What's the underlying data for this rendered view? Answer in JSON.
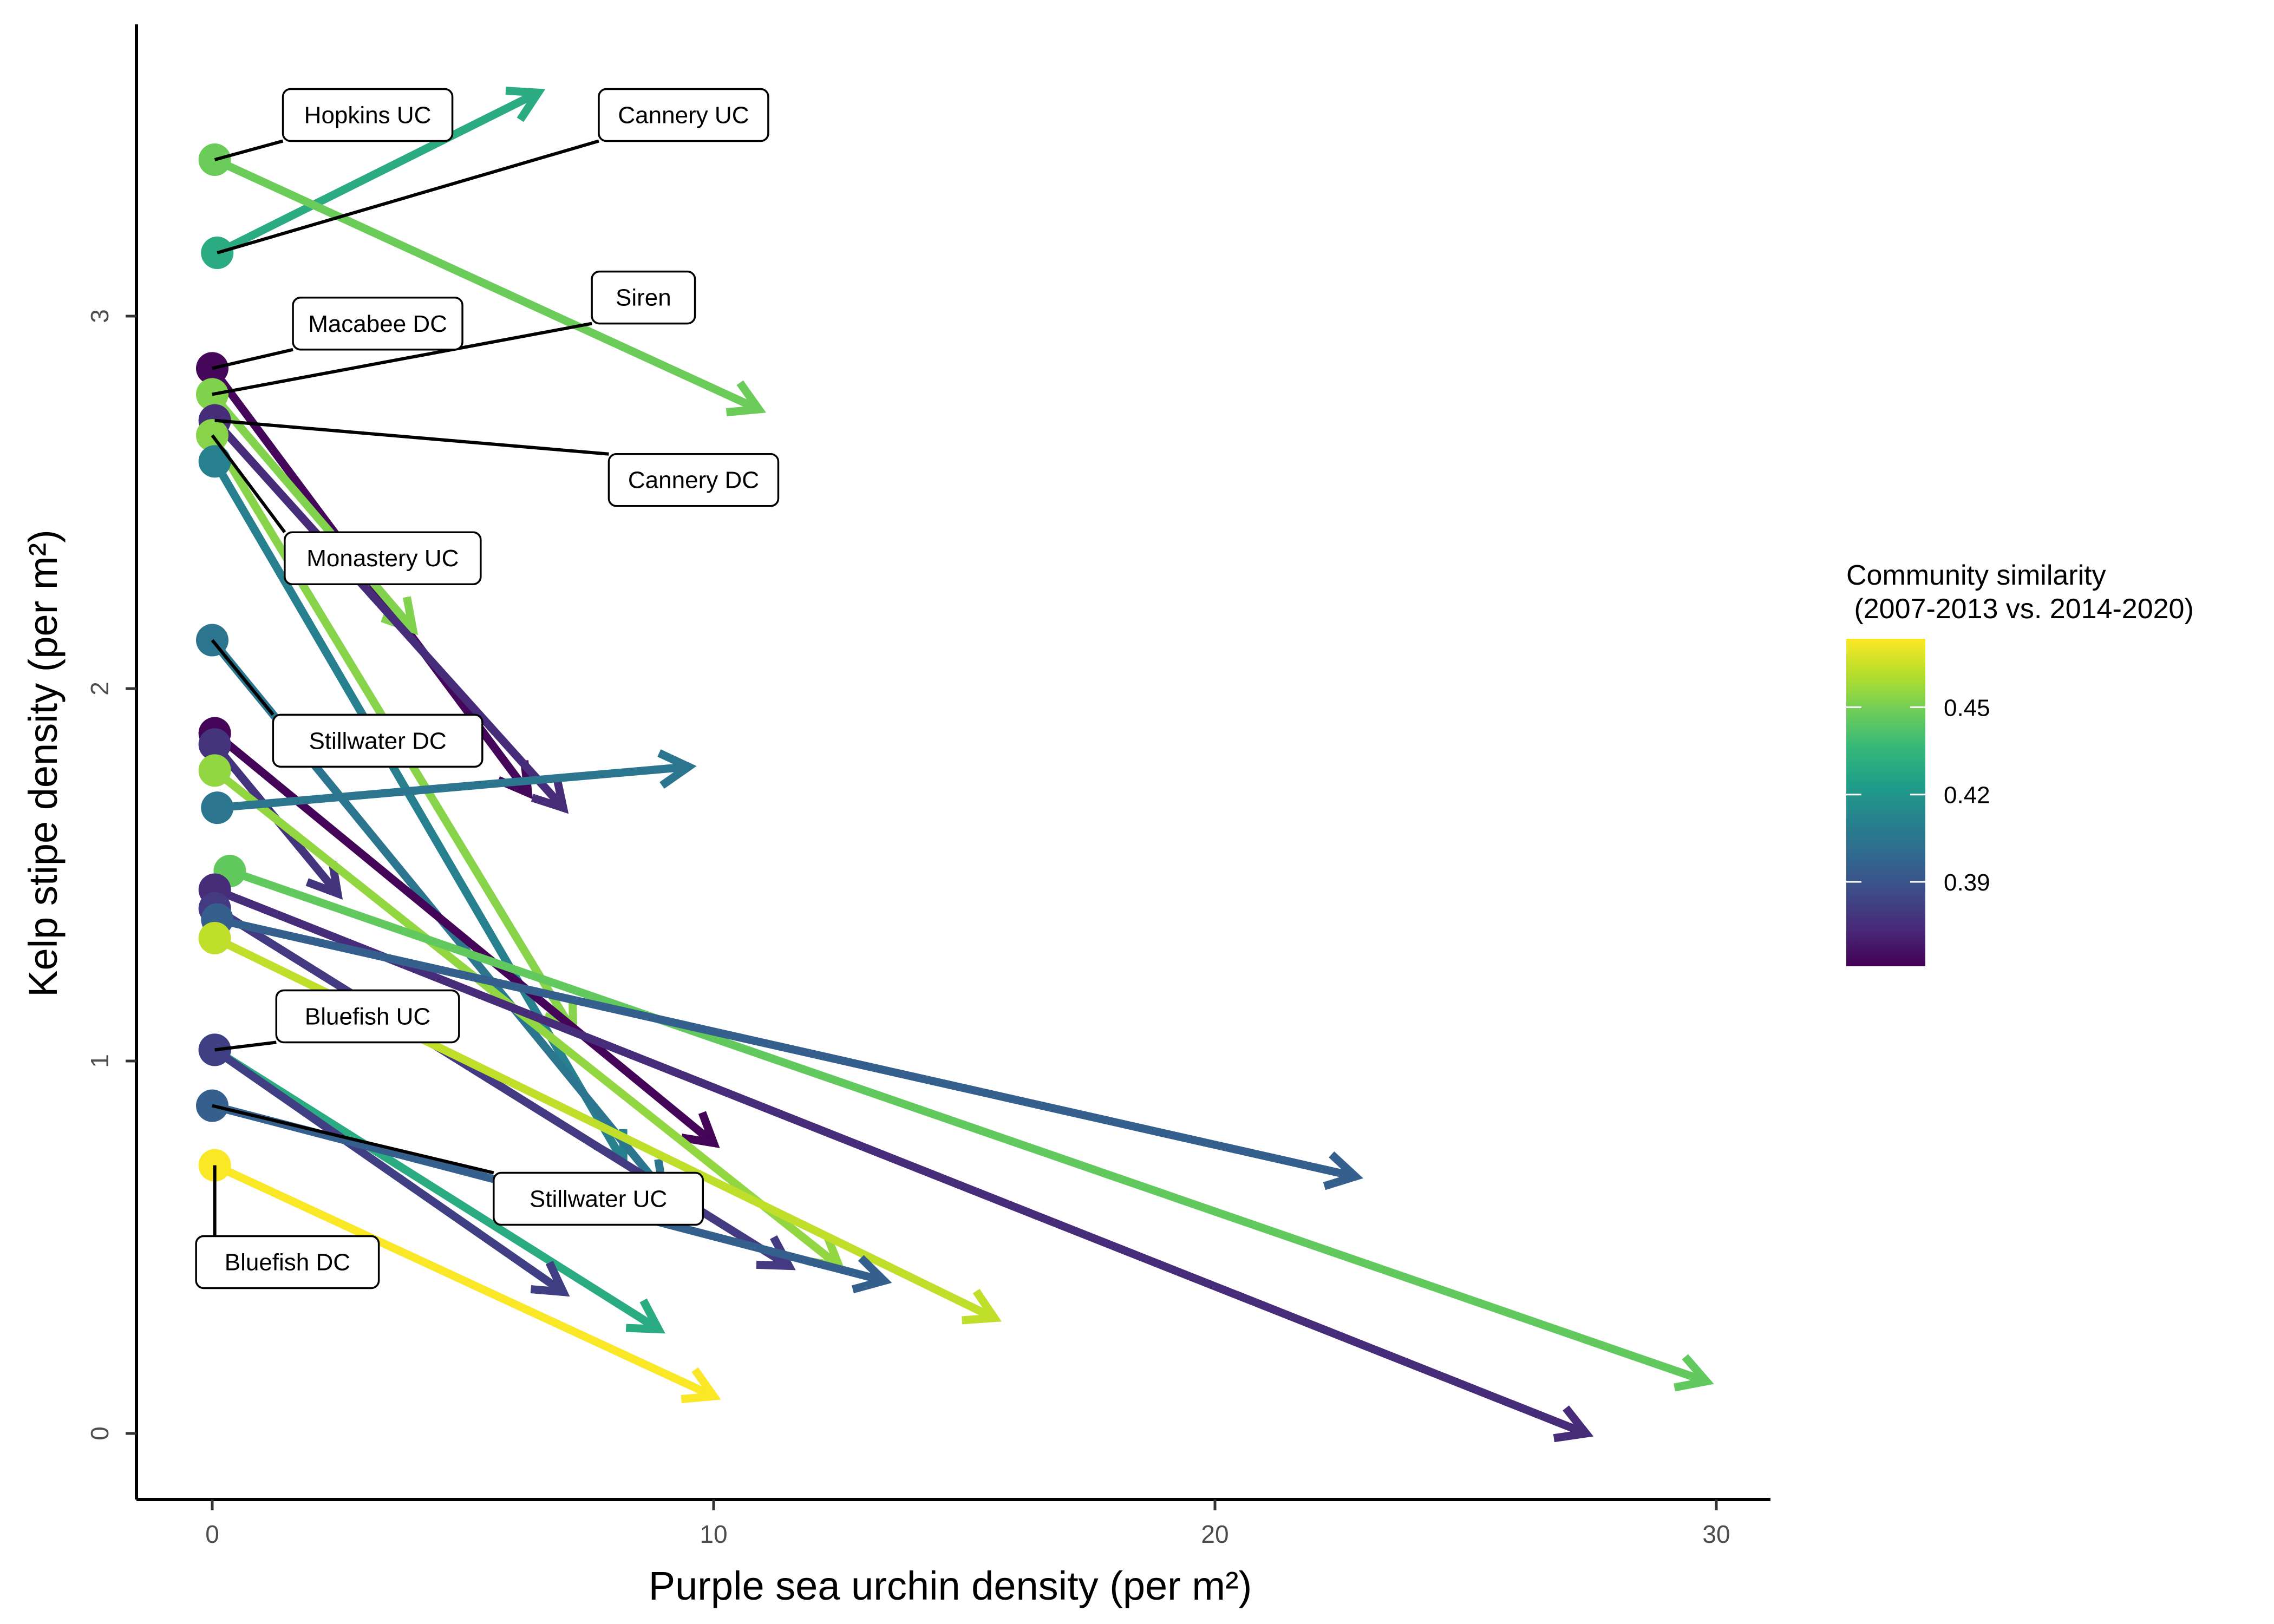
{
  "chart_data": {
    "type": "scatter",
    "subtype": "arrow segments (site trajectories)",
    "xlabel": "Purple sea urchin density (per m²)",
    "ylabel": "Kelp stipe density (per m²)",
    "xlim": [
      -1.5,
      31.2
    ],
    "ylim": [
      -0.18,
      3.77
    ],
    "x_ticks": [
      "0",
      "10",
      "20",
      "30"
    ],
    "y_ticks": [
      "0",
      "1",
      "2",
      "3"
    ],
    "grid": false,
    "legend": {
      "title": "Community similarity\n (2007-2013 vs. 2014-2020)",
      "position": "right",
      "range": [
        0.361,
        0.4735
      ],
      "ticks": [
        "0.39",
        "0.42",
        "0.45"
      ],
      "colors": [
        "#440154",
        "#482878",
        "#3e4a89",
        "#31688e",
        "#26828e",
        "#1f9e89",
        "#35b779",
        "#6dcd59",
        "#b4de2c",
        "#fde725"
      ]
    },
    "series": [
      {
        "x0": 0.1,
        "y0": 3.17,
        "x1": 6.5,
        "y1": 3.6,
        "similarity": 0.43,
        "label": "Cannery UC"
      },
      {
        "x0": 0.05,
        "y0": 3.42,
        "x1": 10.9,
        "y1": 2.75,
        "similarity": 0.448,
        "label": "Hopkins UC"
      },
      {
        "x0": 0.0,
        "y0": 2.86,
        "x1": 6.3,
        "y1": 1.72,
        "similarity": 0.363,
        "label": "Macabee DC"
      },
      {
        "x0": 0.0,
        "y0": 2.79,
        "x1": 4.0,
        "y1": 2.16,
        "similarity": 0.452,
        "label": "Siren"
      },
      {
        "x0": 0.05,
        "y0": 2.72,
        "x1": 7.0,
        "y1": 1.68,
        "similarity": 0.375,
        "label": "Cannery DC"
      },
      {
        "x0": 0.0,
        "y0": 2.68,
        "x1": 7.2,
        "y1": 1.08,
        "similarity": 0.453,
        "label": "Monastery UC"
      },
      {
        "x0": 0.05,
        "y0": 2.61,
        "x1": 8.2,
        "y1": 0.73,
        "similarity": 0.41
      },
      {
        "x0": 0.0,
        "y0": 2.13,
        "x1": 9.0,
        "y1": 0.65,
        "similarity": 0.405,
        "label": "Stillwater DC"
      },
      {
        "x0": 0.05,
        "y0": 1.88,
        "x1": 10.0,
        "y1": 0.78,
        "similarity": 0.362
      },
      {
        "x0": 0.05,
        "y0": 1.85,
        "x1": 2.5,
        "y1": 1.45,
        "similarity": 0.378
      },
      {
        "x0": 0.05,
        "y0": 1.78,
        "x1": 12.5,
        "y1": 0.45,
        "similarity": 0.455
      },
      {
        "x0": 0.1,
        "y0": 1.68,
        "x1": 9.5,
        "y1": 1.79,
        "similarity": 0.405
      },
      {
        "x0": 0.35,
        "y0": 1.51,
        "x1": 29.8,
        "y1": 0.14,
        "similarity": 0.446
      },
      {
        "x0": 0.05,
        "y0": 1.46,
        "x1": 27.4,
        "y1": 0.0,
        "similarity": 0.375
      },
      {
        "x0": 0.05,
        "y0": 1.41,
        "x1": 11.5,
        "y1": 0.45,
        "similarity": 0.38
      },
      {
        "x0": 0.1,
        "y0": 1.38,
        "x1": 22.8,
        "y1": 0.69,
        "similarity": 0.395
      },
      {
        "x0": 0.05,
        "y0": 1.33,
        "x1": 15.6,
        "y1": 0.31,
        "similarity": 0.463
      },
      {
        "x0": 0.05,
        "y0": 1.03,
        "x1": 8.9,
        "y1": 0.28,
        "similarity": 0.43,
        "label": "Bluefish UC"
      },
      {
        "x0": 0.05,
        "y0": 1.03,
        "x1": 7.0,
        "y1": 0.38,
        "similarity": 0.382
      },
      {
        "x0": 0.0,
        "y0": 0.88,
        "x1": 13.4,
        "y1": 0.41,
        "similarity": 0.395,
        "label": "Stillwater UC"
      },
      {
        "x0": 0.05,
        "y0": 0.72,
        "x1": 10.0,
        "y1": 0.1,
        "similarity": 0.473,
        "label": "Bluefish DC"
      }
    ],
    "annotations": [
      {
        "text": "Hopkins UC",
        "x": 3.1,
        "y": 3.54,
        "anchor_x": 0.05,
        "anchor_y": 3.42
      },
      {
        "text": "Cannery UC",
        "x": 9.4,
        "y": 3.54,
        "anchor_x": 0.1,
        "anchor_y": 3.17
      },
      {
        "text": "Siren",
        "x": 8.6,
        "y": 3.05,
        "anchor_x": 0.0,
        "anchor_y": 2.79
      },
      {
        "text": "Macabee DC",
        "x": 3.3,
        "y": 2.98,
        "anchor_x": 0.0,
        "anchor_y": 2.86
      },
      {
        "text": "Cannery DC",
        "x": 9.6,
        "y": 2.56,
        "anchor_x": 0.05,
        "anchor_y": 2.72
      },
      {
        "text": "Monastery UC",
        "x": 3.4,
        "y": 2.35,
        "anchor_x": 0.0,
        "anchor_y": 2.68
      },
      {
        "text": "Stillwater DC",
        "x": 3.3,
        "y": 1.86,
        "anchor_x": 0.0,
        "anchor_y": 2.13
      },
      {
        "text": "Bluefish UC",
        "x": 3.1,
        "y": 1.12,
        "anchor_x": 0.05,
        "anchor_y": 1.03
      },
      {
        "text": "Stillwater UC",
        "x": 7.7,
        "y": 0.63,
        "anchor_x": 0.0,
        "anchor_y": 0.88
      },
      {
        "text": "Bluefish DC",
        "x": 1.5,
        "y": 0.46,
        "anchor_x": 0.05,
        "anchor_y": 0.72
      }
    ]
  }
}
